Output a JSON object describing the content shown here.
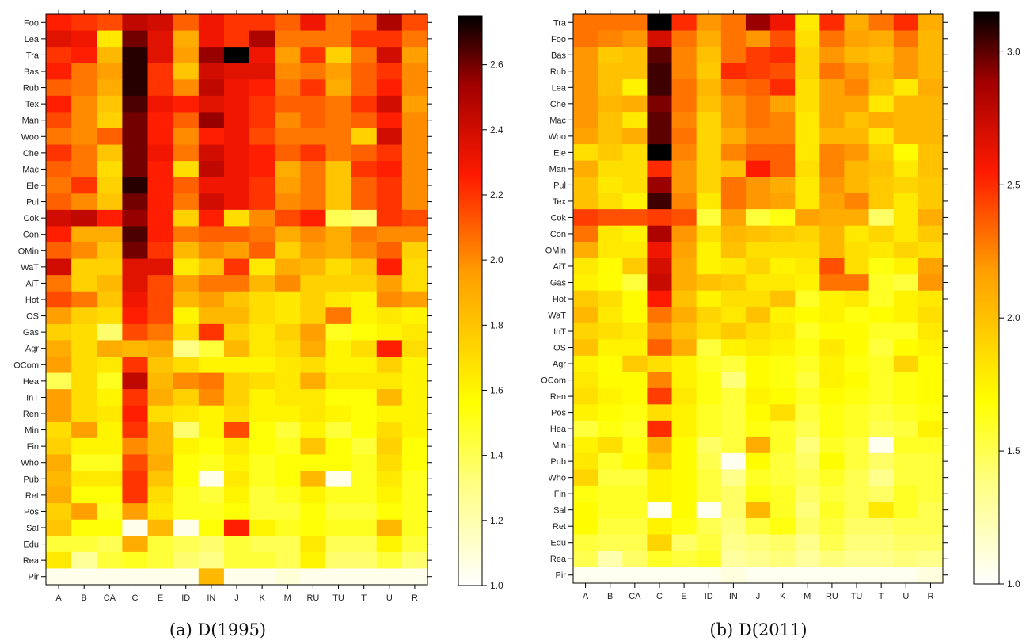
{
  "chart_data": [
    {
      "type": "heatmap",
      "caption": "(a) D(1995)",
      "x": [
        "A",
        "B",
        "CA",
        "C",
        "E",
        "ID",
        "IN",
        "J",
        "K",
        "M",
        "RU",
        "TU",
        "T",
        "U",
        "R"
      ],
      "y": [
        "Foo",
        "Lea",
        "Tra",
        "Bas",
        "Rub",
        "Tex",
        "Man",
        "Woo",
        "Che",
        "Mac",
        "Ele",
        "Pul",
        "Cok",
        "Con",
        "OMin",
        "WaT",
        "AiT",
        "Hot",
        "OS",
        "Gas",
        "Agr",
        "OCom",
        "Hea",
        "InT",
        "Ren",
        "Min",
        "Fin",
        "Who",
        "Pub",
        "Ret",
        "Pos",
        "Sal",
        "Edu",
        "Rea",
        "Pir"
      ],
      "colorbar": {
        "min": 1.0,
        "max": 2.75,
        "ticks": [
          1.0,
          1.2,
          1.4,
          1.6,
          1.8,
          2.0,
          2.2,
          2.4,
          2.6
        ]
      },
      "values": [
        [
          2.25,
          2.2,
          2.15,
          2.45,
          2.4,
          2.1,
          2.3,
          2.2,
          2.2,
          2.1,
          2.3,
          2.05,
          2.1,
          2.5,
          2.15
        ],
        [
          2.35,
          2.3,
          1.65,
          2.6,
          2.35,
          1.9,
          2.3,
          2.2,
          2.5,
          2.05,
          2.05,
          2.05,
          2.2,
          2.2,
          2.05
        ],
        [
          2.2,
          2.25,
          1.85,
          2.7,
          2.35,
          1.95,
          2.55,
          2.75,
          2.3,
          1.95,
          2.2,
          1.75,
          2.05,
          2.4,
          1.95
        ],
        [
          2.25,
          2.05,
          1.95,
          2.7,
          2.2,
          1.8,
          2.4,
          2.35,
          2.35,
          2.0,
          2.05,
          1.95,
          2.1,
          2.2,
          2.0
        ],
        [
          2.1,
          2.05,
          1.9,
          2.7,
          2.2,
          2.0,
          2.45,
          2.3,
          2.25,
          2.05,
          2.2,
          1.9,
          2.1,
          2.25,
          2.0
        ],
        [
          2.25,
          2.0,
          1.8,
          2.65,
          2.3,
          2.25,
          2.35,
          2.3,
          2.2,
          2.1,
          2.1,
          2.05,
          2.2,
          2.4,
          1.95
        ],
        [
          2.15,
          2.0,
          1.75,
          2.6,
          2.25,
          2.1,
          2.55,
          2.3,
          2.2,
          2.0,
          2.1,
          2.05,
          2.1,
          2.25,
          2.0
        ],
        [
          2.05,
          2.0,
          2.1,
          2.6,
          2.25,
          2.0,
          2.25,
          2.3,
          2.15,
          2.05,
          2.05,
          2.05,
          1.75,
          2.4,
          2.0
        ],
        [
          2.2,
          2.05,
          1.8,
          2.6,
          2.3,
          2.05,
          2.4,
          2.3,
          2.25,
          2.1,
          2.2,
          2.05,
          2.1,
          2.2,
          2.0
        ],
        [
          2.1,
          2.05,
          1.7,
          2.6,
          2.25,
          1.7,
          2.45,
          2.3,
          2.25,
          1.9,
          2.05,
          1.8,
          2.2,
          2.25,
          2.0
        ],
        [
          2.05,
          2.2,
          1.75,
          2.7,
          2.25,
          2.1,
          2.3,
          2.3,
          2.2,
          1.95,
          2.05,
          1.8,
          2.1,
          2.2,
          2.0
        ],
        [
          2.1,
          2.0,
          1.8,
          2.6,
          2.25,
          2.05,
          2.4,
          2.3,
          2.2,
          2.0,
          2.05,
          1.8,
          2.1,
          2.2,
          2.0
        ],
        [
          2.4,
          2.45,
          2.25,
          2.55,
          2.25,
          1.75,
          2.25,
          1.7,
          2.0,
          2.15,
          2.25,
          1.4,
          1.35,
          2.2,
          2.15
        ],
        [
          2.25,
          1.9,
          1.9,
          2.65,
          2.25,
          2.05,
          2.1,
          2.1,
          2.05,
          1.9,
          2.0,
          1.9,
          2.05,
          2.0,
          2.0
        ],
        [
          2.1,
          2.0,
          1.8,
          2.6,
          2.2,
          1.85,
          2.0,
          1.95,
          2.1,
          1.75,
          1.95,
          1.9,
          2.0,
          2.1,
          1.75
        ],
        [
          2.4,
          1.75,
          1.75,
          2.35,
          2.35,
          1.65,
          1.8,
          2.2,
          1.65,
          1.9,
          1.85,
          1.7,
          1.8,
          2.25,
          1.7
        ],
        [
          2.05,
          1.75,
          1.85,
          2.35,
          2.15,
          1.95,
          2.05,
          2.05,
          1.85,
          2.0,
          1.75,
          1.75,
          1.75,
          1.95,
          1.7
        ],
        [
          2.15,
          2.05,
          1.8,
          2.3,
          2.15,
          1.85,
          1.95,
          1.8,
          1.7,
          1.65,
          1.75,
          1.65,
          1.6,
          2.0,
          1.95
        ],
        [
          1.95,
          1.75,
          1.7,
          2.25,
          2.15,
          1.6,
          1.85,
          1.85,
          1.7,
          1.65,
          1.75,
          2.05,
          1.6,
          1.65,
          1.6
        ],
        [
          1.75,
          1.7,
          1.35,
          2.15,
          2.05,
          1.7,
          2.2,
          1.75,
          1.65,
          1.75,
          1.95,
          1.5,
          1.55,
          1.6,
          1.65
        ],
        [
          1.9,
          1.7,
          1.9,
          1.85,
          1.9,
          1.3,
          1.45,
          1.85,
          1.65,
          1.7,
          1.9,
          1.6,
          1.7,
          2.25,
          1.7
        ],
        [
          1.95,
          1.7,
          1.65,
          2.2,
          1.8,
          1.7,
          1.6,
          1.6,
          1.6,
          1.65,
          1.7,
          1.6,
          1.6,
          1.75,
          1.6
        ],
        [
          1.4,
          1.7,
          1.5,
          2.45,
          1.85,
          2.0,
          2.05,
          1.75,
          1.7,
          1.65,
          1.9,
          1.65,
          1.65,
          1.65,
          1.6
        ],
        [
          1.95,
          1.7,
          1.6,
          2.2,
          1.9,
          1.75,
          2.0,
          1.75,
          1.6,
          1.65,
          1.65,
          1.55,
          1.55,
          1.85,
          1.6
        ],
        [
          1.95,
          1.7,
          1.65,
          2.25,
          1.7,
          1.65,
          1.6,
          1.7,
          1.6,
          1.6,
          1.65,
          1.6,
          1.55,
          1.6,
          1.6
        ],
        [
          1.7,
          1.95,
          1.6,
          2.2,
          1.85,
          1.35,
          1.6,
          2.15,
          1.55,
          1.45,
          1.6,
          1.45,
          1.55,
          1.7,
          1.6
        ],
        [
          1.75,
          1.6,
          1.6,
          2.0,
          1.85,
          1.6,
          1.55,
          1.65,
          1.55,
          1.5,
          1.8,
          1.55,
          1.45,
          1.75,
          1.55
        ],
        [
          1.9,
          1.5,
          1.5,
          2.15,
          1.9,
          1.55,
          1.5,
          1.6,
          1.5,
          1.55,
          1.55,
          1.55,
          1.5,
          1.7,
          1.55
        ],
        [
          1.85,
          1.65,
          1.65,
          2.2,
          1.8,
          1.55,
          1.05,
          1.65,
          1.5,
          1.55,
          1.85,
          1.05,
          1.5,
          1.65,
          1.5
        ],
        [
          1.9,
          1.55,
          1.55,
          2.2,
          1.7,
          1.5,
          1.45,
          1.6,
          1.45,
          1.5,
          1.6,
          1.5,
          1.5,
          1.6,
          1.5
        ],
        [
          1.75,
          1.95,
          1.5,
          1.95,
          1.65,
          1.5,
          1.5,
          1.55,
          1.45,
          1.45,
          1.55,
          1.45,
          1.45,
          1.55,
          1.5
        ],
        [
          1.8,
          1.55,
          1.55,
          1.05,
          1.85,
          1.05,
          1.55,
          2.25,
          1.6,
          1.5,
          1.55,
          1.5,
          1.5,
          1.85,
          1.5
        ],
        [
          1.45,
          1.45,
          1.4,
          1.9,
          1.45,
          1.4,
          1.35,
          1.45,
          1.4,
          1.4,
          1.65,
          1.4,
          1.4,
          1.6,
          1.45
        ],
        [
          1.65,
          1.25,
          1.45,
          1.5,
          1.45,
          1.35,
          1.3,
          1.45,
          1.45,
          1.4,
          1.6,
          1.35,
          1.35,
          1.45,
          1.35
        ],
        [
          1.05,
          1.05,
          1.05,
          1.05,
          1.05,
          1.05,
          1.85,
          1.05,
          1.05,
          1.1,
          1.05,
          1.05,
          1.05,
          1.05,
          1.05
        ]
      ]
    },
    {
      "type": "heatmap",
      "caption": "(b) D(2011)",
      "x": [
        "A",
        "B",
        "CA",
        "C",
        "E",
        "ID",
        "IN",
        "J",
        "K",
        "M",
        "RU",
        "TU",
        "T",
        "U",
        "R"
      ],
      "y": [
        "Tra",
        "Foo",
        "Bas",
        "Rub",
        "Lea",
        "Che",
        "Mac",
        "Woo",
        "Ele",
        "Man",
        "Pul",
        "Tex",
        "Cok",
        "Con",
        "OMin",
        "AiT",
        "Gas",
        "Hot",
        "WaT",
        "InT",
        "OS",
        "Agr",
        "OCom",
        "Ren",
        "Pos",
        "Hea",
        "Min",
        "Pub",
        "Who",
        "Fin",
        "Sal",
        "Ret",
        "Edu",
        "Rea",
        "Pir"
      ],
      "colorbar": {
        "min": 1.0,
        "max": 3.15,
        "ticks": [
          1.0,
          1.5,
          2.0,
          2.5,
          3.0
        ]
      },
      "values": [
        [
          2.3,
          2.3,
          2.3,
          3.15,
          2.5,
          2.2,
          2.3,
          2.9,
          2.6,
          1.8,
          2.5,
          2.1,
          2.3,
          2.5,
          2.1
        ],
        [
          2.3,
          2.25,
          2.2,
          2.7,
          2.3,
          2.1,
          2.3,
          2.2,
          2.4,
          1.85,
          2.3,
          2.15,
          2.1,
          2.3,
          2.05
        ],
        [
          2.2,
          1.95,
          2.0,
          3.0,
          2.25,
          2.0,
          2.3,
          2.45,
          2.5,
          1.9,
          2.2,
          2.05,
          2.0,
          2.2,
          2.05
        ],
        [
          2.2,
          2.0,
          2.0,
          3.05,
          2.25,
          1.95,
          2.5,
          2.45,
          2.4,
          1.9,
          2.3,
          2.2,
          2.05,
          2.2,
          2.05
        ],
        [
          2.2,
          2.0,
          1.75,
          3.05,
          2.3,
          2.05,
          2.3,
          2.35,
          2.5,
          1.85,
          2.15,
          2.25,
          2.0,
          1.8,
          2.1
        ],
        [
          2.2,
          2.05,
          2.1,
          2.95,
          2.3,
          2.0,
          2.2,
          2.3,
          2.15,
          1.85,
          2.15,
          2.15,
          1.8,
          2.05,
          2.05
        ],
        [
          2.2,
          2.0,
          1.8,
          3.0,
          2.25,
          1.9,
          2.2,
          2.3,
          2.25,
          1.8,
          2.15,
          2.0,
          2.1,
          2.05,
          2.05
        ],
        [
          2.15,
          2.0,
          2.1,
          3.0,
          2.3,
          1.9,
          2.1,
          2.25,
          2.25,
          1.8,
          2.05,
          2.05,
          1.8,
          2.05,
          2.05
        ],
        [
          1.85,
          1.95,
          1.85,
          3.15,
          2.25,
          1.9,
          2.25,
          2.35,
          2.35,
          1.8,
          2.25,
          2.2,
          1.95,
          1.7,
          2.0
        ],
        [
          2.1,
          1.85,
          1.85,
          2.5,
          2.2,
          1.9,
          2.0,
          2.55,
          2.35,
          1.85,
          2.25,
          2.05,
          2.0,
          1.8,
          2.0
        ],
        [
          2.0,
          1.8,
          1.85,
          2.9,
          2.2,
          1.9,
          2.3,
          2.2,
          2.1,
          1.8,
          2.2,
          2.05,
          1.95,
          1.9,
          1.95
        ],
        [
          2.0,
          1.85,
          1.75,
          3.05,
          2.25,
          1.8,
          2.3,
          2.2,
          2.15,
          1.8,
          2.15,
          2.25,
          1.95,
          1.8,
          1.95
        ],
        [
          2.45,
          2.4,
          2.4,
          2.45,
          2.4,
          1.55,
          2.15,
          1.55,
          1.65,
          2.15,
          2.1,
          2.1,
          1.45,
          1.8,
          2.1
        ],
        [
          2.3,
          1.8,
          1.75,
          2.85,
          2.2,
          1.85,
          2.05,
          2.0,
          1.95,
          1.9,
          2.05,
          1.8,
          1.9,
          1.8,
          1.95
        ],
        [
          2.1,
          1.8,
          1.8,
          2.6,
          2.15,
          1.75,
          2.0,
          1.85,
          1.85,
          1.85,
          2.05,
          1.85,
          1.8,
          1.9,
          1.85
        ],
        [
          1.8,
          1.7,
          1.95,
          2.7,
          2.1,
          1.75,
          1.8,
          1.9,
          1.75,
          1.8,
          2.4,
          1.85,
          1.65,
          1.75,
          2.15
        ],
        [
          1.75,
          1.7,
          1.55,
          2.75,
          2.1,
          2.0,
          1.95,
          1.8,
          1.8,
          1.75,
          2.3,
          2.3,
          1.6,
          1.55,
          2.2
        ],
        [
          1.95,
          1.85,
          1.7,
          2.55,
          2.0,
          1.75,
          1.85,
          1.85,
          2.0,
          1.6,
          1.75,
          1.8,
          1.6,
          1.75,
          1.8
        ],
        [
          2.05,
          1.8,
          1.7,
          2.3,
          2.1,
          1.9,
          1.8,
          2.0,
          1.75,
          1.7,
          1.75,
          1.65,
          1.7,
          1.75,
          1.85
        ],
        [
          1.9,
          1.85,
          1.8,
          2.2,
          2.0,
          1.85,
          1.95,
          1.85,
          1.8,
          1.6,
          1.7,
          1.7,
          1.6,
          1.6,
          1.8
        ],
        [
          2.0,
          1.75,
          1.75,
          2.35,
          2.1,
          1.55,
          1.75,
          1.8,
          1.75,
          1.65,
          1.8,
          1.7,
          1.55,
          1.7,
          1.75
        ],
        [
          1.75,
          1.7,
          1.95,
          1.85,
          1.75,
          1.6,
          1.55,
          1.7,
          1.65,
          1.6,
          1.75,
          1.65,
          1.6,
          1.9,
          1.7
        ],
        [
          1.8,
          1.7,
          1.7,
          2.25,
          1.75,
          1.65,
          1.4,
          1.7,
          1.65,
          1.55,
          1.75,
          1.7,
          1.6,
          1.65,
          1.7
        ],
        [
          1.85,
          1.75,
          1.7,
          2.45,
          1.8,
          1.65,
          1.55,
          1.75,
          1.7,
          1.6,
          1.7,
          1.65,
          1.6,
          1.65,
          1.7
        ],
        [
          1.75,
          1.7,
          1.65,
          1.85,
          1.75,
          1.6,
          1.55,
          1.7,
          1.85,
          1.55,
          1.65,
          1.6,
          1.55,
          1.6,
          1.65
        ],
        [
          1.55,
          1.65,
          1.6,
          2.5,
          1.75,
          1.6,
          1.55,
          1.65,
          1.6,
          1.5,
          1.65,
          1.6,
          1.5,
          1.55,
          1.75
        ],
        [
          1.75,
          1.85,
          1.65,
          2.1,
          1.7,
          1.45,
          1.55,
          2.1,
          1.6,
          1.4,
          1.6,
          1.55,
          1.05,
          1.6,
          1.6
        ],
        [
          1.8,
          1.6,
          1.7,
          1.95,
          1.7,
          1.5,
          1.05,
          1.7,
          1.55,
          1.45,
          1.7,
          1.55,
          1.45,
          1.55,
          1.55
        ],
        [
          1.9,
          1.55,
          1.55,
          1.75,
          1.7,
          1.55,
          1.35,
          1.6,
          1.55,
          1.5,
          1.6,
          1.5,
          1.35,
          1.55,
          1.55
        ],
        [
          1.65,
          1.6,
          1.6,
          1.75,
          1.7,
          1.55,
          1.45,
          1.65,
          1.6,
          1.45,
          1.55,
          1.5,
          1.45,
          1.6,
          1.55
        ],
        [
          1.7,
          1.6,
          1.6,
          1.05,
          1.7,
          1.05,
          1.45,
          2.05,
          1.6,
          1.4,
          1.6,
          1.5,
          1.8,
          1.6,
          1.5
        ],
        [
          1.7,
          1.55,
          1.55,
          1.75,
          1.65,
          1.5,
          1.4,
          1.55,
          1.65,
          1.45,
          1.55,
          1.45,
          1.45,
          1.5,
          1.5
        ],
        [
          1.55,
          1.5,
          1.5,
          1.9,
          1.45,
          1.55,
          1.35,
          1.4,
          1.45,
          1.35,
          1.5,
          1.4,
          1.4,
          1.45,
          1.45
        ],
        [
          1.5,
          1.25,
          1.45,
          1.6,
          1.55,
          1.6,
          1.3,
          1.35,
          1.4,
          1.3,
          1.4,
          1.35,
          1.35,
          1.4,
          1.35
        ],
        [
          1.05,
          1.05,
          1.05,
          1.05,
          1.05,
          1.05,
          1.1,
          1.05,
          1.05,
          1.05,
          1.05,
          1.05,
          1.05,
          1.05,
          1.1
        ]
      ]
    }
  ]
}
